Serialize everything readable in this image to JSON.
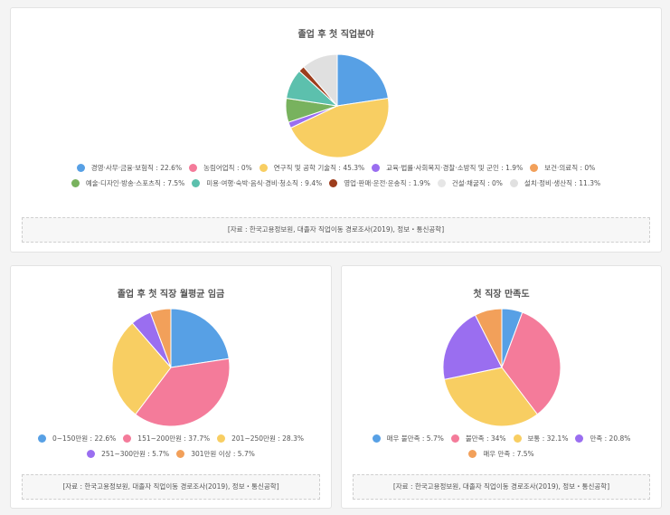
{
  "source_text": "[자료 : 한국고용정보원, 대졸자 직업이동 경로조사(2019), 정보・통신공학]",
  "footer_partial": "",
  "chart_data": [
    {
      "type": "pie",
      "title": "졸업 후 첫 직업분야",
      "labels": [
        "경영·사무·금융·보험직",
        "농림어업직",
        "연구직 및 공학 기술직",
        "교육·법률·사회복지·경찰·소방직 및 군인",
        "보건·의료직",
        "예술·디자인·방송·스포츠직",
        "미용·여행·숙박·음식·경비·청소직",
        "영업·판매·운전·운송직",
        "건설·채굴직",
        "설치·정비·생산직"
      ],
      "values": [
        22.6,
        0,
        45.3,
        1.9,
        0,
        7.5,
        9.4,
        1.9,
        0,
        11.3
      ],
      "colors": [
        "#57a0e5",
        "#f47b9a",
        "#f8ce62",
        "#9a6ef0",
        "#f2a05a",
        "#78b25e",
        "#5cc0ad",
        "#9d3d1c",
        "#e6e6e6",
        "#e0e0e0"
      ],
      "legend_text": [
        "경영·사무·금융·보험직 : 22.6%",
        "농림어업직 : 0%",
        "연구직 및 공학 기술직 : 45.3%",
        "교육·법률·사회복지·경찰·소방직 및 군인 : 1.9%",
        "보건·의료직 : 0%",
        "예술·디자인·방송·스포츠직 : 7.5%",
        "미용·여행·숙박·음식·경비·청소직 : 9.4%",
        "영업·판매·운전·운송직 : 1.9%",
        "건설·채굴직 : 0%",
        "설치·정비·생산직 : 11.3%"
      ],
      "unit": "%"
    },
    {
      "type": "pie",
      "title": "졸업 후 첫 직장 월평균 임금",
      "labels": [
        "0~150만원",
        "151~200만원",
        "201~250만원",
        "251~300만원",
        "301만원 이상"
      ],
      "values": [
        22.6,
        37.7,
        28.3,
        5.7,
        5.7
      ],
      "colors": [
        "#57a0e5",
        "#f47b9a",
        "#f8ce62",
        "#9a6ef0",
        "#f2a05a"
      ],
      "legend_text": [
        "0~150만원 : 22.6%",
        "151~200만원 : 37.7%",
        "201~250만원 : 28.3%",
        "251~300만원 : 5.7%",
        "301만원 이상 : 5.7%"
      ],
      "unit": "%"
    },
    {
      "type": "pie",
      "title": "첫 직장 만족도",
      "labels": [
        "매우 불만족",
        "불만족",
        "보통",
        "만족",
        "매우 만족"
      ],
      "values": [
        5.7,
        34,
        32.1,
        20.8,
        7.5
      ],
      "colors": [
        "#57a0e5",
        "#f47b9a",
        "#f8ce62",
        "#9a6ef0",
        "#f2a05a"
      ],
      "legend_text": [
        "매우 불만족 : 5.7%",
        "불만족 : 34%",
        "보통 : 32.1%",
        "만족 : 20.8%",
        "매우 만족 : 7.5%"
      ],
      "unit": "%"
    }
  ]
}
